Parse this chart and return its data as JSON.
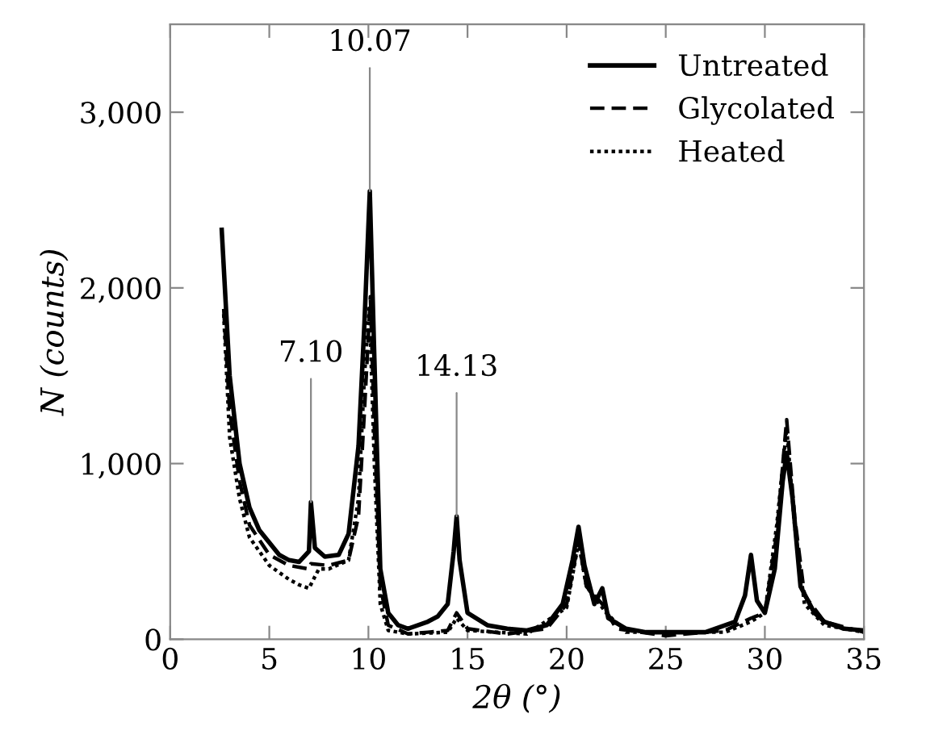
{
  "chart_data": {
    "type": "line",
    "xlabel": "2θ (°)",
    "ylabel": "N (counts)",
    "xlim": [
      0,
      35
    ],
    "xticks": [
      0,
      5,
      10,
      15,
      20,
      25,
      30,
      35
    ],
    "ylim": [
      0,
      3500
    ],
    "yticks": [
      0,
      {
        "value": 1000,
        "label": "1,000"
      },
      {
        "value": 2000,
        "label": "2,000"
      },
      {
        "value": 3000,
        "label": "3,000"
      }
    ],
    "grid": false,
    "legend": "top right",
    "marker": "none",
    "annotations": [
      {
        "text": "7.10",
        "x": 7.1,
        "y": 780
      },
      {
        "text": "10.07",
        "x": 10.07,
        "y": 2550
      },
      {
        "text": "14.13",
        "x": 14.45,
        "y": 700
      }
    ],
    "series": [
      {
        "name": "Untreated",
        "color": "#000000",
        "line_style": "solid",
        "x": [
          2.6,
          3,
          3.5,
          4,
          4.5,
          5,
          5.5,
          6,
          6.5,
          7,
          7.1,
          7.3,
          7.8,
          8.5,
          9,
          9.5,
          9.8,
          10.07,
          10.3,
          10.6,
          11,
          11.5,
          12,
          13,
          13.5,
          14,
          14.3,
          14.45,
          14.6,
          15,
          16,
          17,
          18,
          19,
          19.8,
          20.3,
          20.6,
          20.9,
          21.4,
          21.8,
          22.1,
          23,
          24,
          25,
          27,
          28.5,
          29,
          29.3,
          29.6,
          30,
          30.5,
          30.9,
          31.1,
          31.4,
          31.8,
          32.5,
          33,
          34,
          35
        ],
        "values": [
          2330,
          1500,
          1000,
          750,
          620,
          550,
          480,
          450,
          440,
          500,
          780,
          520,
          470,
          480,
          600,
          1100,
          1800,
          2550,
          1600,
          400,
          150,
          80,
          60,
          100,
          130,
          200,
          500,
          700,
          450,
          150,
          80,
          60,
          50,
          80,
          200,
          450,
          640,
          420,
          200,
          290,
          120,
          60,
          40,
          40,
          40,
          100,
          250,
          480,
          220,
          150,
          400,
          900,
          1060,
          800,
          300,
          150,
          100,
          60,
          50
        ]
      },
      {
        "name": "Glycolated",
        "color": "#000000",
        "line_style": "dashed",
        "x": [
          2.7,
          3,
          3.5,
          4,
          5,
          6,
          7,
          7.1,
          8,
          9,
          9.5,
          9.8,
          10.1,
          10.3,
          10.6,
          11,
          12,
          13,
          14,
          14.45,
          15,
          17,
          19,
          20,
          20.6,
          21,
          21.8,
          22.5,
          25,
          28,
          29.3,
          30,
          30.6,
          31.1,
          31.5,
          32,
          33,
          35
        ],
        "values": [
          1880,
          1300,
          900,
          650,
          480,
          420,
          400,
          430,
          420,
          450,
          700,
          1300,
          1950,
          1200,
          300,
          80,
          30,
          40,
          50,
          150,
          60,
          30,
          60,
          200,
          560,
          300,
          200,
          60,
          20,
          50,
          120,
          150,
          600,
          1250,
          700,
          250,
          100,
          40
        ]
      },
      {
        "name": "Heated",
        "color": "#000000",
        "line_style": "dotted",
        "x": [
          2.7,
          3,
          3.5,
          4,
          5,
          6,
          6.5,
          7,
          7.5,
          8,
          9,
          9.5,
          9.8,
          10.05,
          10.3,
          10.6,
          11,
          12,
          14,
          14.45,
          15,
          18,
          20,
          20.6,
          21,
          22,
          23,
          28,
          29.3,
          30,
          30.6,
          31.1,
          31.5,
          32,
          33,
          35
        ],
        "values": [
          1850,
          1150,
          800,
          580,
          420,
          340,
          310,
          290,
          400,
          400,
          450,
          800,
          1500,
          1900,
          1000,
          200,
          50,
          30,
          40,
          120,
          50,
          30,
          180,
          550,
          300,
          150,
          40,
          40,
          100,
          150,
          650,
          1200,
          650,
          200,
          80,
          40
        ]
      }
    ]
  }
}
